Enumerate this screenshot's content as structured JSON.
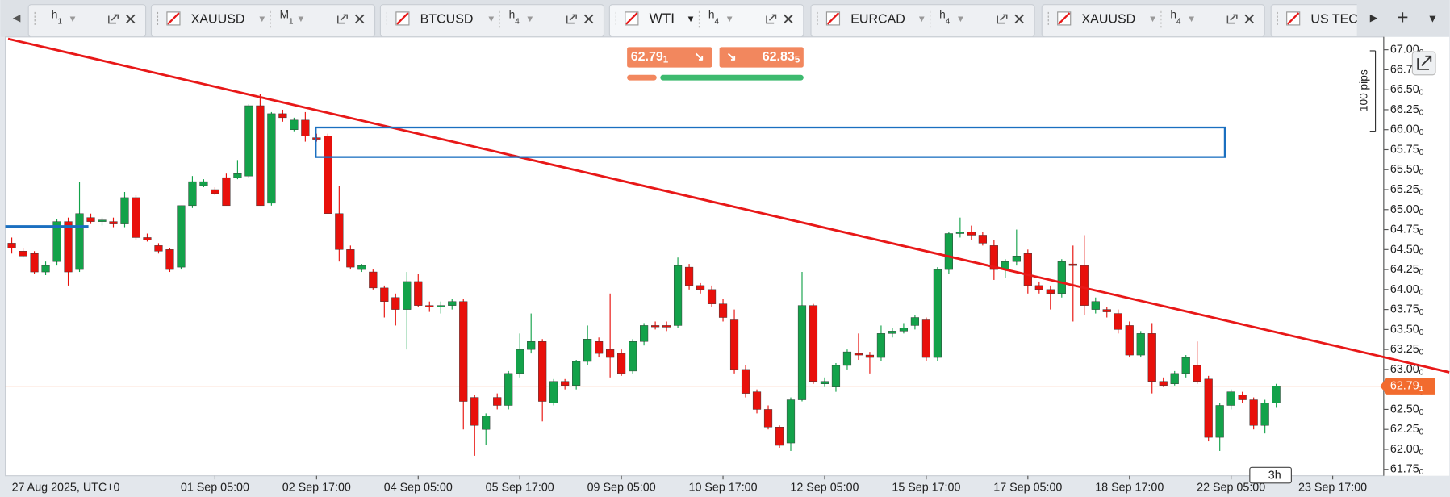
{
  "tabs": [
    {
      "timeframe": "h1"
    },
    {
      "symbol": "XAUUSD",
      "timeframe": "M1"
    },
    {
      "symbol": "BTCUSD",
      "timeframe": "h4"
    },
    {
      "symbol": "WTI",
      "timeframe": "h4"
    },
    {
      "symbol": "EURCAD",
      "timeframe": "h4"
    },
    {
      "symbol": "XAUUSD",
      "timeframe": "h4"
    },
    {
      "symbol": "US TEC"
    }
  ],
  "trade": {
    "sell": "62.791",
    "buy": "62.835"
  },
  "chart": {
    "type": "candlestick",
    "ylim": [
      61.67,
      67.16
    ],
    "yticks": [
      {
        "value": 67,
        "label": "67.000"
      },
      {
        "value": 66.75,
        "label": "66.750"
      },
      {
        "value": 66.5,
        "label": "66.500"
      },
      {
        "value": 66.25,
        "label": "66.250"
      },
      {
        "value": 66,
        "label": "66.000"
      },
      {
        "value": 65.75,
        "label": "65.750"
      },
      {
        "value": 65.5,
        "label": "65.500"
      },
      {
        "value": 65.25,
        "label": "65.250"
      },
      {
        "value": 65,
        "label": "65.000"
      },
      {
        "value": 64.75,
        "label": "64.750"
      },
      {
        "value": 64.5,
        "label": "64.500"
      },
      {
        "value": 64.25,
        "label": "64.250"
      },
      {
        "value": 64,
        "label": "64.000"
      },
      {
        "value": 63.75,
        "label": "63.750"
      },
      {
        "value": 63.5,
        "label": "63.500"
      },
      {
        "value": 63.25,
        "label": "63.250"
      },
      {
        "value": 63,
        "label": "63.000"
      },
      {
        "value": 62.75,
        "label": "62.750"
      },
      {
        "value": 62.5,
        "label": "62.500"
      },
      {
        "value": 62.25,
        "label": "62.250"
      },
      {
        "value": 62,
        "label": "62.000"
      },
      {
        "value": 61.75,
        "label": "61.750"
      }
    ],
    "time_labels": [
      "27 Aug 2025, UTC+0",
      "01 Sep 05:00",
      "02 Sep 17:00",
      "04 Sep 05:00",
      "05 Sep 17:00",
      "09 Sep 05:00",
      "10 Sep 17:00",
      "12 Sep 05:00",
      "15 Sep 17:00",
      "17 Sep 05:00",
      "18 Sep 17:00",
      "22 Sep 05:00",
      "23 Sep 17:00"
    ],
    "last_price": {
      "value": 62.791,
      "label": "62.791"
    },
    "pips_label": "100 pips",
    "interval_label": "3h",
    "up_color": "#13a24a",
    "down_color": "#e8100b",
    "candles": [
      [
        64.58,
        64.65,
        64.45,
        64.52
      ],
      [
        64.48,
        64.52,
        64.4,
        64.42
      ],
      [
        64.45,
        64.48,
        64.2,
        64.22
      ],
      [
        64.22,
        64.35,
        64.18,
        64.3
      ],
      [
        64.35,
        64.88,
        64.3,
        64.85
      ],
      [
        64.85,
        64.9,
        64.05,
        64.22
      ],
      [
        64.25,
        65.35,
        64.22,
        64.95
      ],
      [
        64.9,
        64.95,
        64.82,
        64.85
      ],
      [
        64.85,
        64.9,
        64.8,
        64.87
      ],
      [
        64.85,
        64.9,
        64.78,
        64.82
      ],
      [
        64.82,
        65.22,
        64.78,
        65.15
      ],
      [
        65.15,
        65.18,
        64.62,
        64.65
      ],
      [
        64.65,
        64.7,
        64.6,
        64.62
      ],
      [
        64.55,
        64.58,
        64.45,
        64.48
      ],
      [
        64.5,
        64.52,
        64.22,
        64.25
      ],
      [
        64.28,
        65.05,
        64.25,
        65.05
      ],
      [
        65.05,
        65.42,
        65.02,
        65.35
      ],
      [
        65.3,
        65.38,
        65.28,
        65.35
      ],
      [
        65.25,
        65.28,
        65.18,
        65.2
      ],
      [
        65.4,
        65.45,
        65.05,
        65.05
      ],
      [
        65.4,
        65.62,
        65.38,
        65.45
      ],
      [
        65.42,
        66.32,
        65.4,
        66.3
      ],
      [
        66.3,
        66.45,
        65.05,
        65.05
      ],
      [
        65.08,
        66.22,
        65.05,
        66.2
      ],
      [
        66.2,
        66.25,
        66.1,
        66.15
      ],
      [
        66.0,
        66.15,
        65.98,
        66.12
      ],
      [
        66.12,
        66.22,
        65.85,
        65.92
      ],
      [
        65.9,
        65.95,
        65.85,
        65.88
      ],
      [
        65.92,
        65.95,
        64.95,
        64.95
      ],
      [
        64.95,
        65.3,
        64.35,
        64.5
      ],
      [
        64.5,
        64.55,
        64.25,
        64.28
      ],
      [
        64.25,
        64.32,
        64.22,
        64.3
      ],
      [
        64.22,
        64.25,
        64.0,
        64.02
      ],
      [
        64.02,
        64.05,
        63.65,
        63.85
      ],
      [
        63.9,
        63.95,
        63.55,
        63.75
      ],
      [
        63.75,
        64.22,
        63.25,
        64.1
      ],
      [
        64.1,
        64.2,
        63.78,
        63.8
      ],
      [
        63.8,
        63.85,
        63.72,
        63.78
      ],
      [
        63.78,
        63.85,
        63.7,
        63.8
      ],
      [
        63.8,
        63.88,
        63.75,
        63.85
      ],
      [
        63.85,
        63.88,
        62.25,
        62.6
      ],
      [
        62.65,
        62.68,
        61.92,
        62.3
      ],
      [
        62.25,
        62.45,
        62.05,
        62.42
      ],
      [
        62.65,
        62.7,
        62.5,
        62.55
      ],
      [
        62.55,
        62.98,
        62.5,
        62.95
      ],
      [
        62.95,
        63.45,
        62.9,
        63.25
      ],
      [
        63.25,
        63.7,
        63.2,
        63.35
      ],
      [
        63.35,
        63.38,
        62.35,
        62.6
      ],
      [
        62.58,
        62.88,
        62.55,
        62.85
      ],
      [
        62.85,
        62.88,
        62.75,
        62.8
      ],
      [
        62.8,
        63.12,
        62.75,
        63.1
      ],
      [
        63.1,
        63.55,
        63.05,
        63.38
      ],
      [
        63.35,
        63.4,
        63.15,
        63.2
      ],
      [
        63.25,
        63.95,
        62.9,
        63.15
      ],
      [
        63.2,
        63.25,
        62.92,
        62.95
      ],
      [
        62.98,
        63.38,
        62.95,
        63.35
      ],
      [
        63.35,
        63.58,
        63.3,
        63.55
      ],
      [
        63.55,
        63.6,
        63.5,
        63.55
      ],
      [
        63.55,
        63.6,
        63.48,
        63.53
      ],
      [
        63.55,
        64.4,
        63.52,
        64.3
      ],
      [
        64.28,
        64.32,
        64.0,
        64.05
      ],
      [
        64.05,
        64.08,
        63.95,
        64.0
      ],
      [
        64.0,
        64.05,
        63.78,
        63.82
      ],
      [
        63.82,
        63.88,
        63.6,
        63.65
      ],
      [
        63.62,
        63.75,
        62.95,
        63.0
      ],
      [
        63.0,
        63.05,
        62.65,
        62.7
      ],
      [
        62.72,
        62.75,
        62.45,
        62.5
      ],
      [
        62.5,
        62.55,
        62.25,
        62.28
      ],
      [
        62.28,
        62.3,
        62.02,
        62.05
      ],
      [
        62.08,
        62.65,
        61.98,
        62.62
      ],
      [
        62.62,
        64.22,
        62.6,
        63.8
      ],
      [
        63.8,
        63.82,
        62.82,
        62.85
      ],
      [
        62.82,
        62.9,
        62.78,
        62.85
      ],
      [
        62.78,
        63.08,
        62.72,
        63.05
      ],
      [
        63.05,
        63.25,
        63.0,
        63.22
      ],
      [
        63.2,
        63.45,
        63.12,
        63.18
      ],
      [
        63.18,
        63.22,
        62.95,
        63.15
      ],
      [
        63.15,
        63.55,
        63.1,
        63.45
      ],
      [
        63.45,
        63.52,
        63.4,
        63.48
      ],
      [
        63.48,
        63.58,
        63.45,
        63.52
      ],
      [
        63.55,
        63.68,
        63.5,
        63.65
      ],
      [
        63.62,
        63.65,
        63.1,
        63.15
      ],
      [
        63.15,
        64.28,
        63.1,
        64.25
      ],
      [
        64.25,
        64.72,
        64.2,
        64.7
      ],
      [
        64.7,
        64.9,
        64.65,
        64.72
      ],
      [
        64.72,
        64.8,
        64.62,
        64.68
      ],
      [
        64.68,
        64.72,
        64.55,
        64.58
      ],
      [
        64.55,
        64.62,
        64.12,
        64.25
      ],
      [
        64.25,
        64.38,
        64.15,
        64.35
      ],
      [
        64.35,
        64.75,
        64.3,
        64.42
      ],
      [
        64.45,
        64.5,
        63.95,
        64.05
      ],
      [
        64.05,
        64.1,
        63.95,
        64.0
      ],
      [
        64.0,
        64.05,
        63.75,
        63.95
      ],
      [
        63.95,
        64.38,
        63.9,
        64.35
      ],
      [
        64.32,
        64.55,
        63.6,
        64.3
      ],
      [
        64.3,
        64.68,
        63.68,
        63.8
      ],
      [
        63.75,
        63.9,
        63.7,
        63.85
      ],
      [
        63.75,
        63.78,
        63.65,
        63.72
      ],
      [
        63.7,
        63.75,
        63.45,
        63.5
      ],
      [
        63.55,
        63.6,
        63.15,
        63.18
      ],
      [
        63.18,
        63.48,
        63.15,
        63.45
      ],
      [
        63.45,
        63.58,
        62.7,
        62.85
      ],
      [
        62.85,
        62.9,
        62.78,
        62.8
      ],
      [
        62.82,
        62.98,
        62.8,
        62.95
      ],
      [
        62.95,
        63.18,
        62.9,
        63.15
      ],
      [
        63.05,
        63.35,
        62.82,
        62.85
      ],
      [
        62.88,
        62.92,
        62.1,
        62.15
      ],
      [
        62.15,
        62.58,
        61.98,
        62.55
      ],
      [
        62.55,
        62.75,
        62.5,
        62.72
      ],
      [
        62.68,
        62.72,
        62.58,
        62.62
      ],
      [
        62.62,
        62.65,
        62.25,
        62.3
      ],
      [
        62.3,
        62.62,
        62.2,
        62.58
      ],
      [
        62.58,
        62.82,
        62.52,
        62.79
      ]
    ]
  }
}
